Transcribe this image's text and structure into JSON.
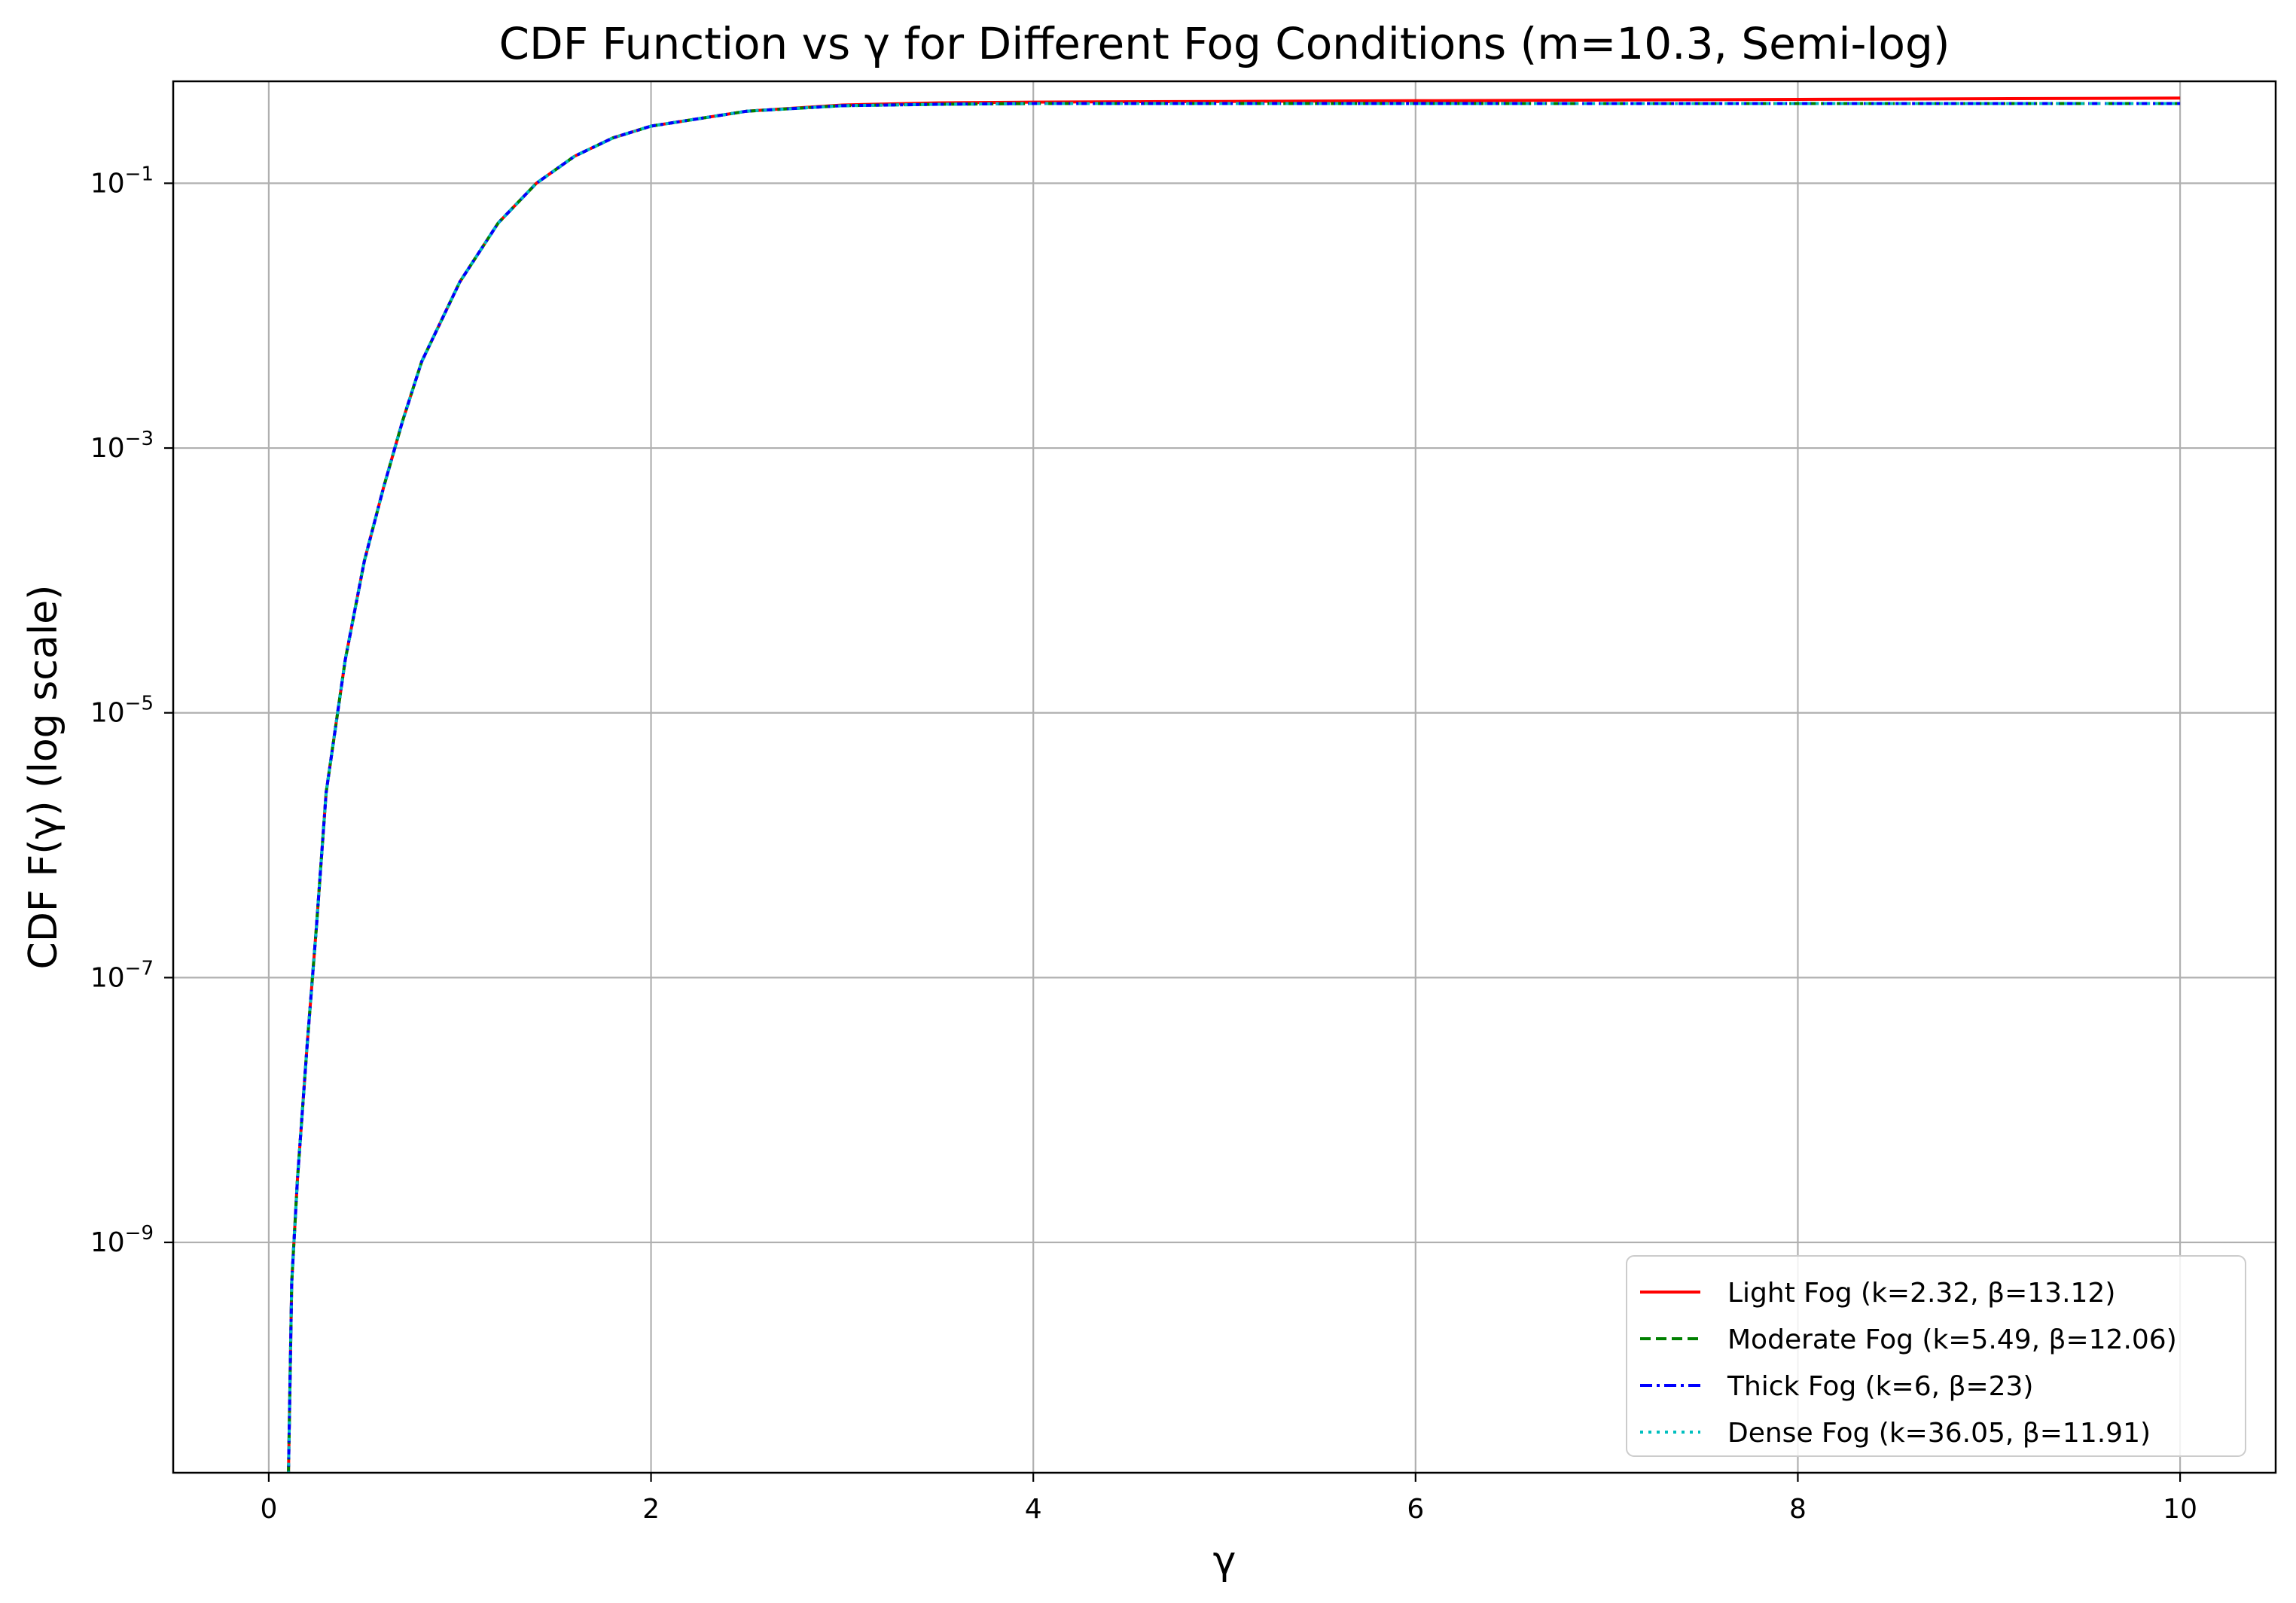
{
  "chart_data": {
    "type": "line",
    "title": "CDF Function vs γ for Different Fog Conditions (m=10.3, Semi-log)",
    "xlabel": "γ",
    "ylabel": "CDF F(γ) (log scale)",
    "xlim": [
      -0.5,
      10.5
    ],
    "ylim_log10": [
      -10.74,
      -0.23
    ],
    "y_scale": "log",
    "grid": true,
    "legend_position": "lower-right",
    "x_ticks": [
      {
        "value": 0,
        "label": "0"
      },
      {
        "value": 2,
        "label": "2"
      },
      {
        "value": 4,
        "label": "4"
      },
      {
        "value": 6,
        "label": "6"
      },
      {
        "value": 8,
        "label": "8"
      },
      {
        "value": 10,
        "label": "10"
      }
    ],
    "y_ticks": [
      {
        "log10": -1,
        "base": "10",
        "exp": "−1"
      },
      {
        "log10": -3,
        "base": "10",
        "exp": "−3"
      },
      {
        "log10": -5,
        "base": "10",
        "exp": "−5"
      },
      {
        "log10": -7,
        "base": "10",
        "exp": "−7"
      },
      {
        "log10": -9,
        "base": "10",
        "exp": "−9"
      }
    ],
    "x": [
      0.1,
      0.12,
      0.15,
      0.2,
      0.25,
      0.3,
      0.4,
      0.5,
      0.6,
      0.7,
      0.8,
      1.0,
      1.2,
      1.4,
      1.6,
      1.8,
      2.0,
      2.5,
      3.0,
      3.5,
      4.0,
      5.0,
      6.0,
      7.0,
      8.0,
      9.0,
      10.0
    ],
    "series": [
      {
        "name": "Light Fog (k=2.32, β=13.12)",
        "color": "#ff0000",
        "dash": "solid",
        "values": [
          1e-11,
          5e-10,
          3e-09,
          3e-08,
          2.5e-07,
          2.5e-06,
          2.5e-05,
          0.00014,
          0.0005,
          0.0016,
          0.0045,
          0.018,
          0.05,
          0.1,
          0.16,
          0.22,
          0.27,
          0.35,
          0.39,
          0.405,
          0.41,
          0.415,
          0.42,
          0.425,
          0.43,
          0.435,
          0.44
        ]
      },
      {
        "name": "Moderate Fog (k=5.49, β=12.06)",
        "color": "#008000",
        "dash": "dashed",
        "values": [
          1e-11,
          5e-10,
          3e-09,
          3e-08,
          2.5e-07,
          2.5e-06,
          2.5e-05,
          0.00014,
          0.0005,
          0.0016,
          0.0045,
          0.018,
          0.05,
          0.1,
          0.16,
          0.22,
          0.27,
          0.35,
          0.385,
          0.395,
          0.4,
          0.4,
          0.4,
          0.4,
          0.4,
          0.4,
          0.4
        ]
      },
      {
        "name": "Thick Fog (k=6, β=23)",
        "color": "#0000ff",
        "dash": "dashdot",
        "values": [
          1e-11,
          5e-10,
          3e-09,
          3e-08,
          2.5e-07,
          2.5e-06,
          2.5e-05,
          0.00014,
          0.0005,
          0.0016,
          0.0045,
          0.018,
          0.05,
          0.1,
          0.16,
          0.22,
          0.27,
          0.35,
          0.385,
          0.395,
          0.4,
          0.4,
          0.4,
          0.4,
          0.4,
          0.4,
          0.4
        ]
      },
      {
        "name": "Dense Fog (k=36.05, β=11.91)",
        "color": "#00bfbf",
        "dash": "dotted",
        "values": [
          1e-11,
          5e-10,
          3e-09,
          3e-08,
          2.5e-07,
          2.5e-06,
          2.5e-05,
          0.00014,
          0.0005,
          0.0016,
          0.0045,
          0.018,
          0.05,
          0.1,
          0.16,
          0.22,
          0.27,
          0.35,
          0.385,
          0.395,
          0.4,
          0.4,
          0.4,
          0.4,
          0.4,
          0.4,
          0.4
        ]
      }
    ]
  }
}
